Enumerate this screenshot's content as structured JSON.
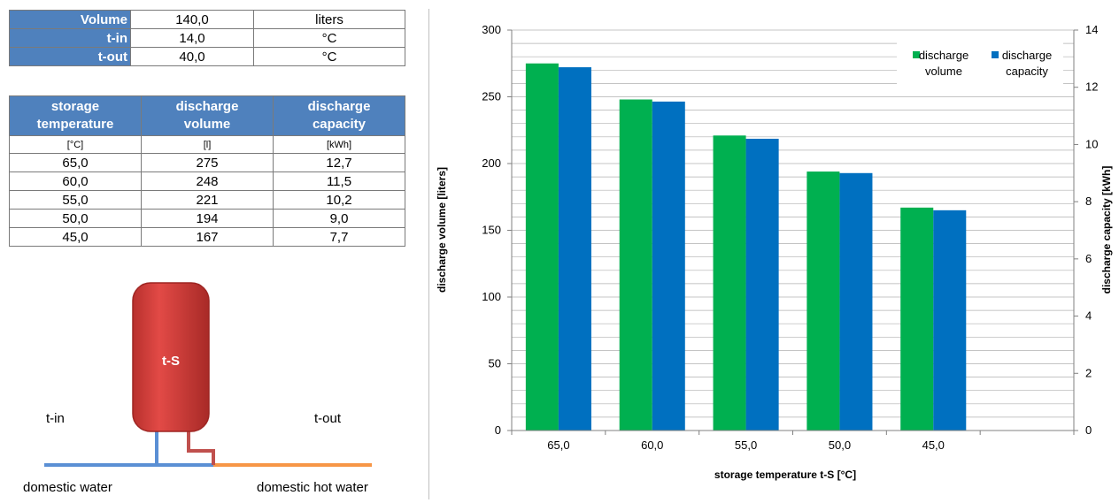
{
  "params": [
    {
      "label": "Volume",
      "value": "140,0",
      "unit": "liters"
    },
    {
      "label": "t-in",
      "value": "14,0",
      "unit": "°C"
    },
    {
      "label": "t-out",
      "value": "40,0",
      "unit": "°C"
    }
  ],
  "results_table": {
    "headers": [
      [
        "storage",
        "temperature"
      ],
      [
        "discharge",
        "volume"
      ],
      [
        "discharge",
        "capacity"
      ]
    ],
    "units": [
      "[°C]",
      "[l]",
      "[kWh]"
    ],
    "rows": [
      [
        "65,0",
        "275",
        "12,7"
      ],
      [
        "60,0",
        "248",
        "11,5"
      ],
      [
        "55,0",
        "221",
        "10,2"
      ],
      [
        "50,0",
        "194",
        "9,0"
      ],
      [
        "45,0",
        "167",
        "7,7"
      ]
    ]
  },
  "diagram": {
    "tank_label": "t-S",
    "inlet_label": "t-in",
    "outlet_label": "t-out",
    "inlet_caption": "domestic water",
    "outlet_caption": "domestic hot water",
    "colors": {
      "tank": "#d03a37",
      "tank_border": "#9e2522",
      "inlet_pipe": "#5a8fd4",
      "outlet_pipe": "#f79646",
      "hot_pipe": "#c0504d"
    }
  },
  "chart_data": {
    "type": "bar",
    "categories": [
      "65,0",
      "60,0",
      "55,0",
      "50,0",
      "45,0"
    ],
    "series": [
      {
        "name": "discharge volume",
        "values": [
          275,
          248,
          221,
          194,
          167
        ],
        "axis": "left",
        "color": "#00b050"
      },
      {
        "name": "discharge capacity",
        "values": [
          12.7,
          11.5,
          10.2,
          9.0,
          7.7
        ],
        "axis": "right",
        "color": "#0070c0"
      }
    ],
    "legend_labels": [
      [
        "discharge",
        "volume"
      ],
      [
        "discharge",
        "capacity"
      ]
    ],
    "legend_position": "top-right",
    "xlabel": "storage temperature t-S  [°C]",
    "ylabel": "discharge  volume [liters]",
    "y2label": "discharge  capacity  [kWh]",
    "ylim": [
      0,
      300
    ],
    "y_ticks": [
      0,
      50,
      100,
      150,
      200,
      250,
      300
    ],
    "y2lim": [
      0,
      14
    ],
    "y2_ticks": [
      0,
      2,
      4,
      6,
      8,
      10,
      12,
      14
    ],
    "grid": true
  }
}
